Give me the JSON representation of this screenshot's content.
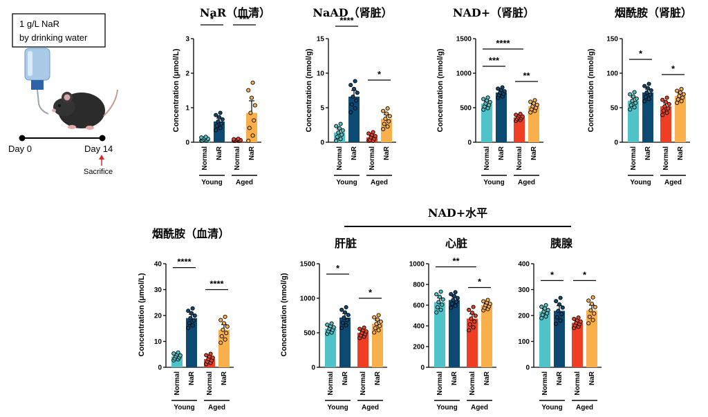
{
  "colors": {
    "normal_young": "#4fc3c7",
    "nar_young": "#0d4a73",
    "normal_aged": "#ee3e23",
    "nar_aged": "#f9b04a"
  },
  "illustration": {
    "box_line1": "1 g/L NaR",
    "box_line2": "by drinking water",
    "day0": "Day 0",
    "day14": "Day 14",
    "sacrifice": "Sacrifice",
    "bottle_icon": "water-bottle-icon",
    "mouse_icon": "mouse-icon"
  },
  "section_title": "NAD+水平",
  "chart_data": [
    {
      "type": "bar",
      "title": "NaR（血清）",
      "ylabel": "Concentration (μmol/L)",
      "ylim": [
        0,
        3
      ],
      "yticks": [
        0,
        1,
        2,
        3
      ],
      "categories": [
        "Normal",
        "NaR",
        "Normal",
        "NaR"
      ],
      "groups": [
        "Young",
        "Aged"
      ],
      "values": [
        0.08,
        0.6,
        0.05,
        0.85
      ],
      "errors": [
        0.03,
        0.1,
        0.02,
        0.35
      ],
      "sig": [
        {
          "from": 0,
          "to": 1,
          "y": 3.4,
          "label": "*"
        },
        {
          "from": 2,
          "to": 3,
          "y": 3.4,
          "label": "***"
        }
      ]
    },
    {
      "type": "bar",
      "title": "NaAD（肾脏）",
      "ylabel": "Concentration (nmol/g)",
      "ylim": [
        0,
        15
      ],
      "yticks": [
        0,
        5,
        10,
        15
      ],
      "categories": [
        "Normal",
        "NaR",
        "Normal",
        "NaR"
      ],
      "groups": [
        "Young",
        "Aged"
      ],
      "values": [
        1.4,
        6.6,
        0.7,
        3.4
      ],
      "errors": [
        0.5,
        0.9,
        0.3,
        0.6
      ],
      "sig": [
        {
          "from": 0,
          "to": 1,
          "y": 16.8,
          "label": "****"
        },
        {
          "from": 2,
          "to": 3,
          "y": 9.0,
          "label": "*"
        }
      ]
    },
    {
      "type": "bar",
      "title": "NAD+（肾脏）",
      "ylabel": "Concentration (nmol/g)",
      "ylim": [
        0,
        1500
      ],
      "yticks": [
        0,
        500,
        1000,
        1500
      ],
      "categories": [
        "Normal",
        "NaR",
        "Normal",
        "NaR"
      ],
      "groups": [
        "Young",
        "Aged"
      ],
      "values": [
        560,
        720,
        360,
        520
      ],
      "errors": [
        35,
        30,
        20,
        35
      ],
      "sig": [
        {
          "from": 0,
          "to": 1,
          "y": 1100,
          "label": "***"
        },
        {
          "from": 0,
          "to": 2,
          "y": 1350,
          "label": "****"
        },
        {
          "from": 2,
          "to": 3,
          "y": 880,
          "label": "**"
        }
      ]
    },
    {
      "type": "bar",
      "title": "烟酰胺（肾脏）",
      "ylabel": "Concentration (nmol/g)",
      "ylim": [
        0,
        150
      ],
      "yticks": [
        0,
        50,
        100,
        150
      ],
      "categories": [
        "Normal",
        "NaR",
        "Normal",
        "NaR"
      ],
      "groups": [
        "Young",
        "Aged"
      ],
      "values": [
        60,
        72,
        52,
        67
      ],
      "errors": [
        5,
        5,
        5,
        4
      ],
      "sig": [
        {
          "from": 0,
          "to": 1,
          "y": 120,
          "label": "*"
        },
        {
          "from": 2,
          "to": 3,
          "y": 98,
          "label": "*"
        }
      ]
    },
    {
      "type": "bar",
      "title": "烟酰胺（血清）",
      "ylabel": "Concentration (μmol/L)",
      "ylim": [
        0,
        40
      ],
      "yticks": [
        0,
        10,
        20,
        30,
        40
      ],
      "categories": [
        "Normal",
        "NaR",
        "Normal",
        "NaR"
      ],
      "groups": [
        "Young",
        "Aged"
      ],
      "values": [
        4.2,
        19,
        3.2,
        14.5
      ],
      "errors": [
        0.6,
        1.5,
        0.8,
        2.0
      ],
      "sig": [
        {
          "from": 0,
          "to": 1,
          "y": 38.5,
          "label": "****"
        },
        {
          "from": 2,
          "to": 3,
          "y": 30,
          "label": "****"
        }
      ]
    },
    {
      "type": "bar",
      "title": "肝脏",
      "ylabel": "Concentration (nmol/g)",
      "ylim": [
        0,
        1500
      ],
      "yticks": [
        0,
        500,
        1000,
        1500
      ],
      "categories": [
        "Normal",
        "NaR",
        "Normal",
        "NaR"
      ],
      "groups": [
        "Young",
        "Aged"
      ],
      "values": [
        560,
        720,
        500,
        630
      ],
      "errors": [
        30,
        60,
        30,
        50
      ],
      "sig": [
        {
          "from": 0,
          "to": 1,
          "y": 1350,
          "label": "*"
        },
        {
          "from": 2,
          "to": 3,
          "y": 1000,
          "label": "*"
        }
      ]
    },
    {
      "type": "bar",
      "title": "心脏",
      "ylabel": "",
      "ylim": [
        0,
        1000
      ],
      "yticks": [
        0,
        200,
        400,
        600,
        800,
        1000
      ],
      "categories": [
        "Normal",
        "NaR",
        "Normal",
        "NaR"
      ],
      "groups": [
        "Young",
        "Aged"
      ],
      "values": [
        630,
        650,
        470,
        600
      ],
      "errors": [
        40,
        30,
        45,
        20
      ],
      "sig": [
        {
          "from": 0,
          "to": 2,
          "y": 970,
          "label": "**"
        },
        {
          "from": 2,
          "to": 3,
          "y": 770,
          "label": "*"
        }
      ]
    },
    {
      "type": "bar",
      "title": "胰腺",
      "ylabel": "",
      "ylim": [
        0,
        400
      ],
      "yticks": [
        0,
        100,
        200,
        300,
        400
      ],
      "categories": [
        "Normal",
        "NaR",
        "Normal",
        "NaR"
      ],
      "groups": [
        "Young",
        "Aged"
      ],
      "values": [
        215,
        218,
        172,
        220
      ],
      "errors": [
        10,
        20,
        8,
        20
      ],
      "sig": [
        {
          "from": 0,
          "to": 1,
          "y": 335,
          "label": "*"
        },
        {
          "from": 2,
          "to": 3,
          "y": 335,
          "label": "*"
        }
      ]
    }
  ]
}
